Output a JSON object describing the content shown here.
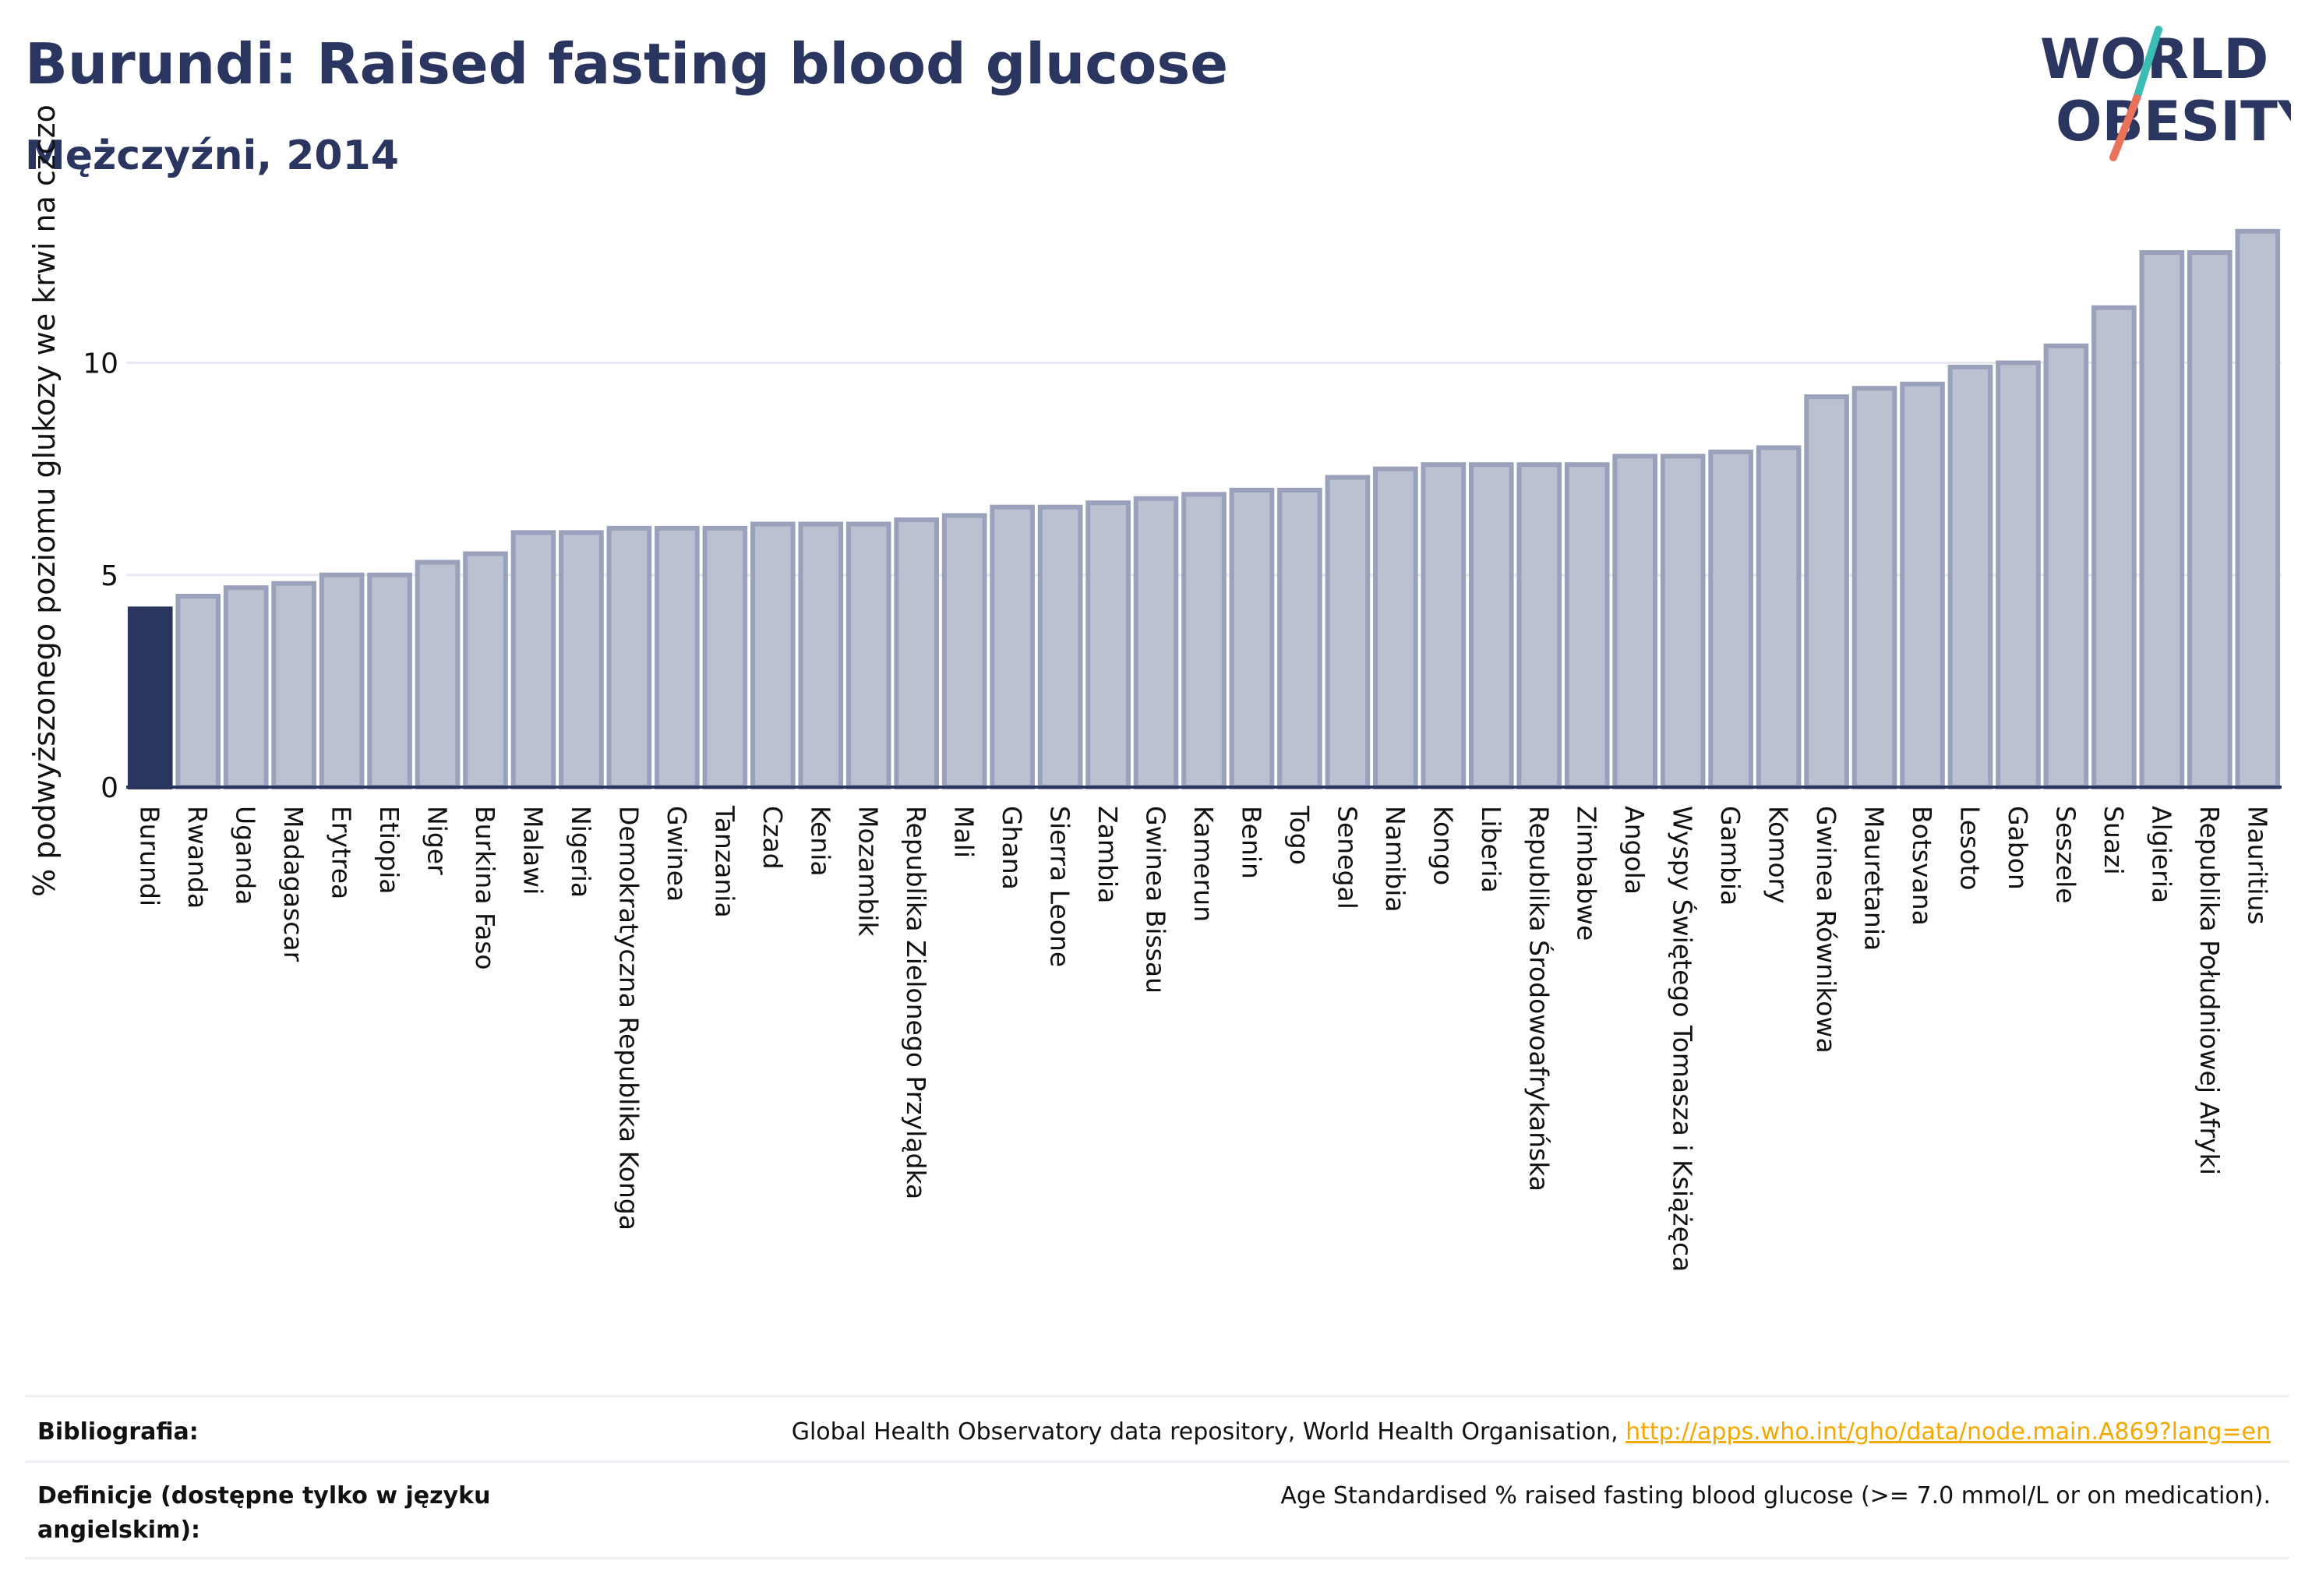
{
  "header": {
    "title": "Burundi: Raised fasting blood glucose",
    "subtitle": "Mężczyźni, 2014"
  },
  "logo": {
    "line1": "WORLD",
    "line2": "OBESITY",
    "icon": "world-obesity-slash-logo"
  },
  "colors": {
    "highlight": "#2a3560",
    "bar": "#bcc1d1",
    "bar_edge": "#9aa1bb",
    "text": "#2a3560",
    "link": "#f5a800"
  },
  "chart_data": {
    "type": "bar",
    "ylabel": "% podwyższonego poziomu glukozy we krwi na czczo",
    "ylim": [
      0,
      13.5
    ],
    "yticks": [
      0,
      5,
      10
    ],
    "grid": true,
    "highlight": "Burundi",
    "categories": [
      "Burundi",
      "Rwanda",
      "Uganda",
      "Madagascar",
      "Erytrea",
      "Etiopia",
      "Niger",
      "Burkina Faso",
      "Malawi",
      "Nigeria",
      "Demokratyczna Republika Konga",
      "Gwinea",
      "Tanzania",
      "Czad",
      "Kenia",
      "Mozambik",
      "Republika Zielonego Przylądka",
      "Mali",
      "Ghana",
      "Sierra Leone",
      "Zambia",
      "Gwinea Bissau",
      "Kamerun",
      "Benin",
      "Togo",
      "Senegal",
      "Namibia",
      "Kongo",
      "Liberia",
      "Republika Środowoafrykańska",
      "Zimbabwe",
      "Angola",
      "Wyspy Świętego Tomasza i Książęca",
      "Gambia",
      "Komory",
      "Gwinea Równikowa",
      "Mauretania",
      "Botsvana",
      "Lesoto",
      "Gabon",
      "Seszele",
      "Suazi",
      "Algieria",
      "Republika Południowej Afryki",
      "Mauritius"
    ],
    "values": [
      4.2,
      4.5,
      4.7,
      4.8,
      5.0,
      5.0,
      5.3,
      5.5,
      6.0,
      6.0,
      6.1,
      6.1,
      6.1,
      6.2,
      6.2,
      6.2,
      6.3,
      6.4,
      6.6,
      6.6,
      6.7,
      6.8,
      6.9,
      7.0,
      7.0,
      7.3,
      7.5,
      7.6,
      7.6,
      7.6,
      7.6,
      7.8,
      7.8,
      7.9,
      8.0,
      9.2,
      9.4,
      9.5,
      9.9,
      10.0,
      10.4,
      11.3,
      12.6,
      12.6,
      13.1
    ]
  },
  "footer": {
    "source_label": "Bibliografia:",
    "source_text": "Global Health Observatory data repository, World Health Organisation, ",
    "source_link": "http://apps.who.int/gho/data/node.main.A869?lang=en",
    "definition_label": "Definicje (dostępne tylko w języku angielskim):",
    "definition_text": "Age Standardised % raised fasting blood glucose (>= 7.0 mmol/L or on medication)."
  }
}
